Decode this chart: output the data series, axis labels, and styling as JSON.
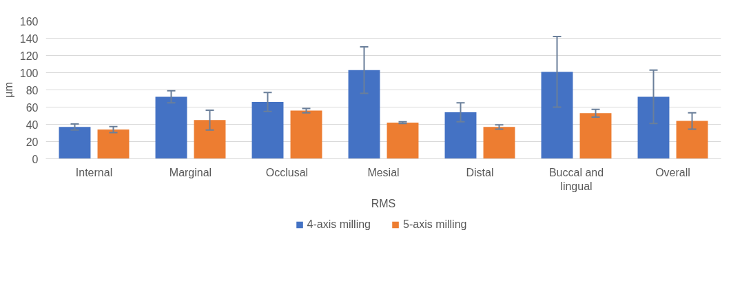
{
  "chart_data": {
    "type": "bar",
    "xlabel": "RMS",
    "ylabel": "µm",
    "categories": [
      "Internal",
      "Marginal",
      "Occlusal",
      "Mesial",
      "Distal",
      "Buccal and lingual",
      "Overall"
    ],
    "series": [
      {
        "name": "4-axis milling",
        "color": "#4472c4",
        "values": [
          37,
          72,
          66,
          103,
          54,
          101,
          72
        ],
        "errors": [
          3.5,
          7,
          11,
          27,
          11,
          41,
          31
        ]
      },
      {
        "name": "5-axis milling",
        "color": "#ed7d31",
        "values": [
          34,
          45,
          56,
          42,
          37,
          53,
          44
        ],
        "errors": [
          3.5,
          11.5,
          2.5,
          1,
          2.5,
          4.5,
          9.5
        ]
      }
    ],
    "ylim": [
      0,
      160
    ],
    "yticks": [
      0,
      20,
      40,
      60,
      80,
      100,
      120,
      140,
      160
    ],
    "grid": "y",
    "legend": "bottom"
  }
}
